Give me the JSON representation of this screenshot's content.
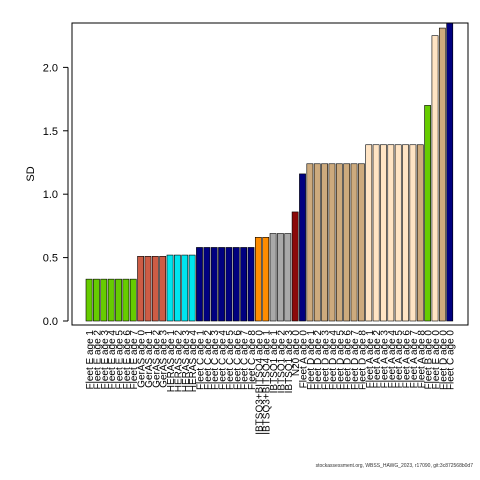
{
  "chart_data": {
    "type": "bar",
    "ylabel": "SD",
    "ylim": [
      0,
      2.35
    ],
    "yticks": [
      0.0,
      0.5,
      1.0,
      1.5,
      2.0
    ],
    "ytick_labels": [
      "0.0",
      "0.5",
      "1.0",
      "1.5",
      "2.0"
    ],
    "grid": false,
    "legend": "none",
    "bars": [
      {
        "label": "Fleet E age 1",
        "value": 0.33,
        "color": "#66cc00"
      },
      {
        "label": "Fleet E age 2",
        "value": 0.33,
        "color": "#66cc00"
      },
      {
        "label": "Fleet E age 3",
        "value": 0.33,
        "color": "#66cc00"
      },
      {
        "label": "Fleet E age 4",
        "value": 0.33,
        "color": "#66cc00"
      },
      {
        "label": "Fleet E age 5",
        "value": 0.33,
        "color": "#66cc00"
      },
      {
        "label": "Fleet E age 6",
        "value": 0.33,
        "color": "#66cc00"
      },
      {
        "label": "Fleet E age 7",
        "value": 0.33,
        "color": "#66cc00"
      },
      {
        "label": "GerAS age 0",
        "value": 0.51,
        "color": "#cd5c45"
      },
      {
        "label": "GerAS age 1",
        "value": 0.51,
        "color": "#cd5c45"
      },
      {
        "label": "GerAS age 2",
        "value": 0.51,
        "color": "#cd5c45"
      },
      {
        "label": "GerAS age 3",
        "value": 0.51,
        "color": "#cd5c45"
      },
      {
        "label": "HERAS age 1",
        "value": 0.52,
        "color": "#00e5ee"
      },
      {
        "label": "HERAS age 2",
        "value": 0.52,
        "color": "#00e5ee"
      },
      {
        "label": "HERAS age 3",
        "value": 0.52,
        "color": "#00e5ee"
      },
      {
        "label": "HERAS age 4",
        "value": 0.52,
        "color": "#00e5ee"
      },
      {
        "label": "Fleet C age 1",
        "value": 0.58,
        "color": "#000080"
      },
      {
        "label": "Fleet C age 2",
        "value": 0.58,
        "color": "#000080"
      },
      {
        "label": "Fleet C age 3",
        "value": 0.58,
        "color": "#000080"
      },
      {
        "label": "Fleet C age 4",
        "value": 0.58,
        "color": "#000080"
      },
      {
        "label": "Fleet C age 5",
        "value": 0.58,
        "color": "#000080"
      },
      {
        "label": "Fleet C age 6",
        "value": 0.58,
        "color": "#000080"
      },
      {
        "label": "Fleet C age 7",
        "value": 0.58,
        "color": "#000080"
      },
      {
        "label": "Fleet C age 8",
        "value": 0.58,
        "color": "#000080"
      },
      {
        "label": "IBTSQ3+BITSQ4 age 0",
        "value": 0.66,
        "color": "#ff8c00"
      },
      {
        "label": "IBTSQ3+BITSQ4 age 1",
        "value": 0.66,
        "color": "#ff8c00"
      },
      {
        "label": "IBTSQ1 age 1",
        "value": 0.69,
        "color": "#a9a9a9"
      },
      {
        "label": "IBTSQ1 age 2",
        "value": 0.69,
        "color": "#a9a9a9"
      },
      {
        "label": "IBTSQ1 age 3",
        "value": 0.69,
        "color": "#a9a9a9"
      },
      {
        "label": "N20 age 0",
        "value": 0.86,
        "color": "#8b0a0a"
      },
      {
        "label": "Fleet A age 0",
        "value": 1.16,
        "color": "#000080"
      },
      {
        "label": "Fleet D age 1",
        "value": 1.24,
        "color": "#cdaa7d"
      },
      {
        "label": "Fleet D age 2",
        "value": 1.24,
        "color": "#cdaa7d"
      },
      {
        "label": "Fleet D age 3",
        "value": 1.24,
        "color": "#cdaa7d"
      },
      {
        "label": "Fleet D age 4",
        "value": 1.24,
        "color": "#cdaa7d"
      },
      {
        "label": "Fleet D age 5",
        "value": 1.24,
        "color": "#cdaa7d"
      },
      {
        "label": "Fleet D age 6",
        "value": 1.24,
        "color": "#cdaa7d"
      },
      {
        "label": "Fleet D age 7",
        "value": 1.24,
        "color": "#cdaa7d"
      },
      {
        "label": "Fleet D age 8",
        "value": 1.24,
        "color": "#cdaa7d"
      },
      {
        "label": "Fleet A age 1",
        "value": 1.39,
        "color": "#ffe4c4"
      },
      {
        "label": "Fleet A age 2",
        "value": 1.39,
        "color": "#ffe4c4"
      },
      {
        "label": "Fleet A age 3",
        "value": 1.39,
        "color": "#ffe4c4"
      },
      {
        "label": "Fleet A age 4",
        "value": 1.39,
        "color": "#ffe4c4"
      },
      {
        "label": "Fleet A age 5",
        "value": 1.39,
        "color": "#ffe4c4"
      },
      {
        "label": "Fleet A age 6",
        "value": 1.39,
        "color": "#ffe4c4"
      },
      {
        "label": "Fleet A age 7",
        "value": 1.39,
        "color": "#ffe4c4"
      },
      {
        "label": "Fleet A age 8",
        "value": 1.39,
        "color": "#cdaa7d"
      },
      {
        "label": "Fleet B age 0",
        "value": 1.7,
        "color": "#66cc00"
      },
      {
        "label": "Fleet E age 0",
        "value": 2.25,
        "color": "#ffe4c4"
      },
      {
        "label": "Fleet D age 0",
        "value": 2.31,
        "color": "#cdaa7d"
      },
      {
        "label": "Fleet C age 0",
        "value": 2.37,
        "color": "#000080"
      }
    ]
  },
  "footnote": "stockassessment.org, WBSS_HAWG_2023, r17090, git:3c872568b0d7"
}
